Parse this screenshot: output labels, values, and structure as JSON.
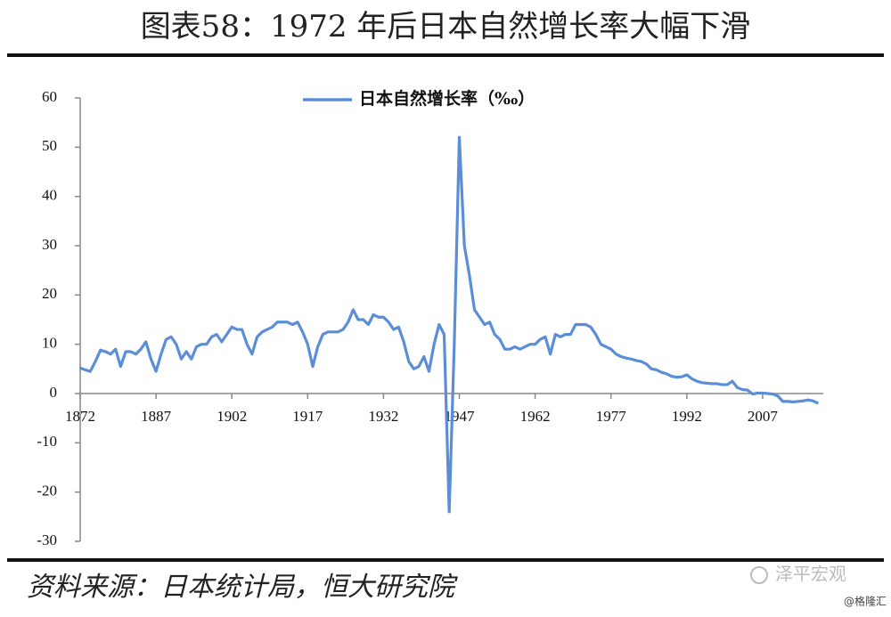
{
  "chart_data": {
    "type": "line",
    "title": "图表58：1972 年后日本自然增长率大幅下滑",
    "x": [
      1872,
      1873,
      1874,
      1875,
      1876,
      1877,
      1878,
      1879,
      1880,
      1881,
      1882,
      1883,
      1884,
      1885,
      1886,
      1887,
      1888,
      1889,
      1890,
      1891,
      1892,
      1893,
      1894,
      1895,
      1896,
      1897,
      1898,
      1899,
      1900,
      1901,
      1902,
      1903,
      1904,
      1905,
      1906,
      1907,
      1908,
      1909,
      1910,
      1911,
      1912,
      1913,
      1914,
      1915,
      1916,
      1917,
      1918,
      1919,
      1920,
      1921,
      1922,
      1923,
      1924,
      1925,
      1926,
      1927,
      1928,
      1929,
      1930,
      1931,
      1932,
      1933,
      1934,
      1935,
      1936,
      1937,
      1938,
      1939,
      1940,
      1941,
      1942,
      1943,
      1944,
      1945,
      1946,
      1947,
      1948,
      1949,
      1950,
      1951,
      1952,
      1953,
      1954,
      1955,
      1956,
      1957,
      1958,
      1959,
      1960,
      1961,
      1962,
      1963,
      1964,
      1965,
      1966,
      1967,
      1968,
      1969,
      1970,
      1971,
      1972,
      1973,
      1974,
      1975,
      1976,
      1977,
      1978,
      1979,
      1980,
      1981,
      1982,
      1983,
      1984,
      1985,
      1986,
      1987,
      1988,
      1989,
      1990,
      1991,
      1992,
      1993,
      1994,
      1995,
      1996,
      1997,
      1998,
      1999,
      2000,
      2001,
      2002,
      2003,
      2004,
      2005,
      2006,
      2007,
      2008,
      2009,
      2010,
      2011,
      2012,
      2013,
      2014,
      2015,
      2016,
      2017,
      2018
    ],
    "series": [
      {
        "name": "日本自然增长率（‰）",
        "color": "#5b8ed6",
        "values": [
          5.2,
          4.8,
          4.5,
          6.5,
          8.8,
          8.5,
          8.0,
          9.0,
          5.5,
          8.5,
          8.5,
          8.0,
          9.0,
          10.5,
          7.0,
          4.5,
          8.0,
          11.0,
          11.5,
          10.0,
          7.0,
          8.5,
          7.0,
          9.5,
          10.0,
          10.0,
          11.5,
          12.0,
          10.5,
          12.0,
          13.5,
          13.0,
          13.0,
          10.0,
          8.0,
          11.5,
          12.5,
          13.0,
          13.5,
          14.5,
          14.5,
          14.5,
          14.0,
          14.5,
          12.5,
          10.0,
          5.5,
          9.5,
          12.0,
          12.5,
          12.5,
          12.5,
          13.0,
          14.5,
          17.0,
          15.0,
          15.0,
          14.0,
          16.0,
          15.5,
          15.5,
          14.5,
          13.0,
          13.5,
          10.5,
          6.5,
          5.0,
          5.5,
          7.5,
          4.5,
          10.0,
          14.0,
          12.0,
          -24.0,
          10.0,
          52.0,
          30.0,
          24.0,
          17.0,
          15.5,
          14.0,
          14.5,
          12.0,
          11.0,
          9.0,
          9.0,
          9.5,
          9.0,
          9.5,
          10.0,
          10.0,
          11.0,
          11.5,
          8.0,
          12.0,
          11.5,
          12.0,
          12.0,
          14.0,
          14.0,
          14.0,
          13.5,
          12.0,
          10.0,
          9.5,
          9.0,
          8.0,
          7.5,
          7.2,
          7.0,
          6.7,
          6.5,
          6.0,
          5.0,
          4.8,
          4.3,
          4.0,
          3.5,
          3.3,
          3.4,
          3.8,
          3.0,
          2.5,
          2.2,
          2.1,
          2.0,
          2.0,
          1.8,
          1.8,
          2.5,
          1.2,
          0.8,
          0.7,
          -0.1,
          0.1,
          0.1,
          0.0,
          -0.1,
          -0.5,
          -1.6,
          -1.6,
          -1.7,
          -1.6,
          -1.5,
          -1.3,
          -1.5,
          -2.0
        ]
      }
    ],
    "xlim": [
      1872,
      2019
    ],
    "xticks": [
      1872,
      1887,
      1902,
      1917,
      1932,
      1947,
      1962,
      1977,
      1992,
      2007
    ],
    "ylim": [
      -30,
      60
    ],
    "yticks": [
      -30,
      -20,
      -10,
      0,
      10,
      20,
      30,
      40,
      50,
      60
    ],
    "legend": "top"
  },
  "source": "资料来源：日本统计局，恒大研究院",
  "watermark": "泽平宏观",
  "credit": "@格隆汇"
}
